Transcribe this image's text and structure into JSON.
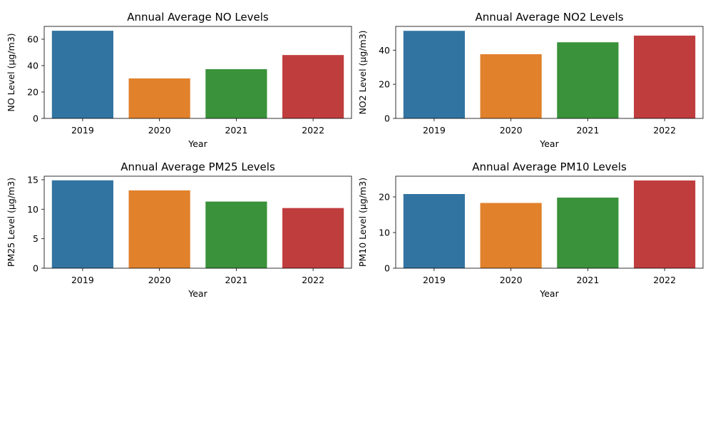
{
  "chart_data": [
    {
      "type": "bar",
      "title": "Annual Average NO Levels",
      "xlabel": "Year",
      "ylabel": "NO Level (µg/m3)",
      "categories": [
        "2019",
        "2020",
        "2021",
        "2022"
      ],
      "values": [
        66.4,
        30.3,
        37.3,
        48.0
      ],
      "ylim": [
        0,
        69.7
      ],
      "yticks": [
        0,
        20,
        40,
        60
      ],
      "colors": [
        "#3274a1",
        "#e1812c",
        "#3a923a",
        "#c03d3e"
      ],
      "grid": false
    },
    {
      "type": "bar",
      "title": "Annual Average NO2 Levels",
      "xlabel": "Year",
      "ylabel": "NO2 Level (µg/m3)",
      "categories": [
        "2019",
        "2020",
        "2021",
        "2022"
      ],
      "values": [
        51.3,
        37.6,
        44.6,
        48.5
      ],
      "ylim": [
        0,
        53.9
      ],
      "yticks": [
        0,
        20,
        40
      ],
      "colors": [
        "#3274a1",
        "#e1812c",
        "#3a923a",
        "#c03d3e"
      ],
      "grid": false
    },
    {
      "type": "bar",
      "title": "Annual Average PM25 Levels",
      "xlabel": "Year",
      "ylabel": "PM25 Level (µg/m3)",
      "categories": [
        "2019",
        "2020",
        "2021",
        "2022"
      ],
      "values": [
        14.9,
        13.2,
        11.3,
        10.2
      ],
      "ylim": [
        0,
        15.6
      ],
      "yticks": [
        0,
        5,
        10,
        15
      ],
      "colors": [
        "#3274a1",
        "#e1812c",
        "#3a923a",
        "#c03d3e"
      ],
      "grid": false
    },
    {
      "type": "bar",
      "title": "Annual Average PM10 Levels",
      "xlabel": "Year",
      "ylabel": "PM10 Level (µg/m3)",
      "categories": [
        "2019",
        "2020",
        "2021",
        "2022"
      ],
      "values": [
        20.8,
        18.3,
        19.8,
        24.6
      ],
      "ylim": [
        0,
        25.8
      ],
      "yticks": [
        0,
        10,
        20
      ],
      "colors": [
        "#3274a1",
        "#e1812c",
        "#3a923a",
        "#c03d3e"
      ],
      "grid": false
    }
  ]
}
